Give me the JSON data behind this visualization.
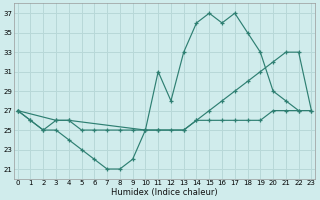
{
  "xlabel": "Humidex (Indice chaleur)",
  "bg_color": "#d0ecec",
  "grid_color": "#b8d8d8",
  "line_color": "#2e7f72",
  "xlim": [
    0,
    23
  ],
  "ylim": [
    20,
    38
  ],
  "xticks": [
    0,
    1,
    2,
    3,
    4,
    5,
    6,
    7,
    8,
    9,
    10,
    11,
    12,
    13,
    14,
    15,
    16,
    17,
    18,
    19,
    20,
    21,
    22,
    23
  ],
  "yticks": [
    21,
    23,
    25,
    27,
    29,
    31,
    33,
    35,
    37
  ],
  "series": [
    {
      "x": [
        0,
        1,
        2,
        3,
        4,
        5,
        6,
        7,
        8,
        9,
        10,
        11,
        12,
        13,
        14,
        15,
        16,
        17,
        18,
        19,
        20,
        21,
        22
      ],
      "y": [
        27,
        26,
        25,
        25,
        24,
        23,
        22,
        21,
        21,
        22,
        25,
        31,
        28,
        33,
        36,
        37,
        36,
        37,
        35,
        33,
        29,
        28,
        27
      ]
    },
    {
      "x": [
        0,
        3,
        4,
        10,
        11,
        13,
        14,
        15,
        16,
        17,
        18,
        19,
        20,
        21,
        22,
        23
      ],
      "y": [
        27,
        26,
        26,
        25,
        25,
        25,
        26,
        27,
        28,
        29,
        30,
        31,
        32,
        33,
        33,
        27
      ]
    },
    {
      "x": [
        0,
        1,
        2,
        3,
        4,
        5,
        6,
        7,
        8,
        9,
        10,
        11,
        12,
        13,
        14,
        15,
        16,
        17,
        18,
        19,
        20,
        21,
        22,
        23
      ],
      "y": [
        27,
        26,
        25,
        26,
        26,
        25,
        25,
        25,
        25,
        25,
        25,
        25,
        25,
        25,
        26,
        26,
        26,
        26,
        26,
        26,
        27,
        27,
        27,
        27
      ]
    }
  ]
}
